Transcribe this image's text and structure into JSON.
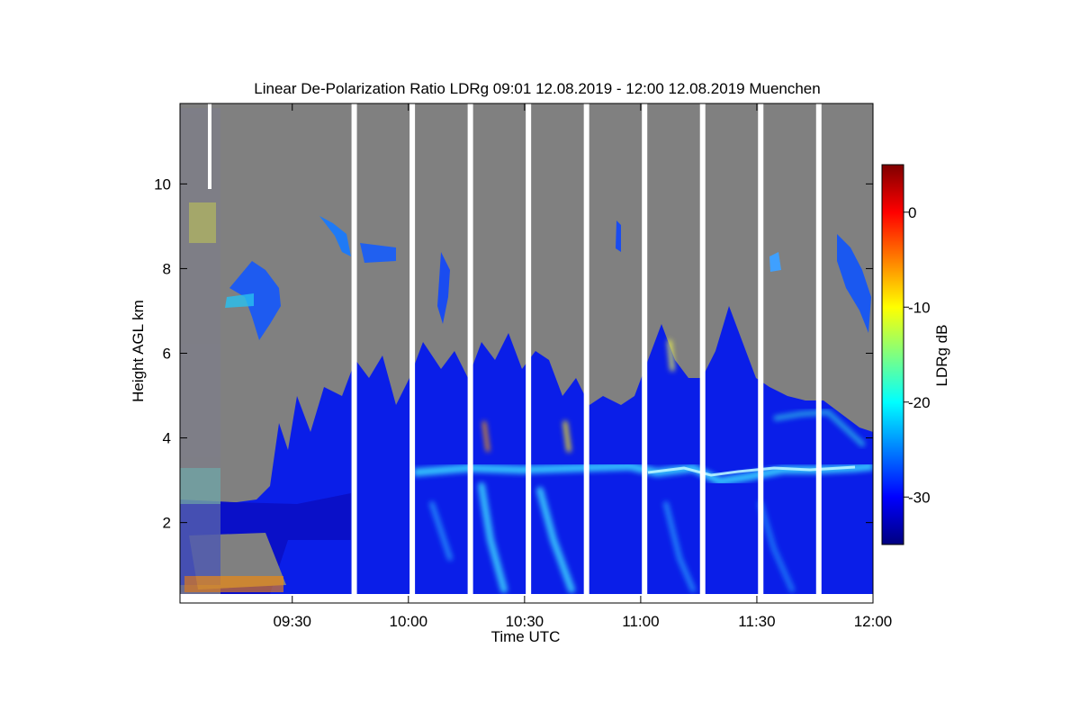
{
  "chart_data": {
    "type": "heatmap",
    "title": "Linear De-Polarization Ratio LDRg   09:01 12.08.2019 - 12:00 12.08.2019 Muenchen",
    "xlabel": "Time UTC",
    "ylabel": "Height AGL km",
    "x_range": [
      "09:01",
      "12:00"
    ],
    "x_ticks": [
      "09:30",
      "10:00",
      "10:30",
      "11:00",
      "11:30",
      "12:00"
    ],
    "ylim": [
      0.1,
      11.9
    ],
    "y_ticks": [
      2,
      4,
      6,
      8,
      10
    ],
    "colorbar": {
      "label": "LDRg dB",
      "range": [
        -35,
        5
      ],
      "ticks": [
        0,
        -10,
        -20,
        -30
      ],
      "colormap": "jet"
    },
    "no_signal_color": "#808080",
    "gaps_utc": [
      "09:46",
      "10:01",
      "10:16",
      "10:31",
      "10:46",
      "11:01",
      "11:16",
      "11:31",
      "11:46"
    ],
    "features": [
      {
        "name": "Low cloud deck",
        "time_start": "09:21",
        "time_end": "12:00",
        "height_top_km": 4.6,
        "ldr_db": -32
      },
      {
        "name": "Melting layer",
        "time_start": "10:00",
        "time_end": "12:00",
        "height_km": 3.1,
        "ldr_db": -22
      },
      {
        "name": "Cirrus patch",
        "time_start": "09:17",
        "time_end": "09:26",
        "height_km": 7.3,
        "ldr_db": -28
      },
      {
        "name": "Aerosol speckle",
        "time_start": "09:02",
        "time_end": "09:12",
        "height_range_km": [
          0.2,
          9.8
        ],
        "ldr_db": -15
      }
    ]
  }
}
